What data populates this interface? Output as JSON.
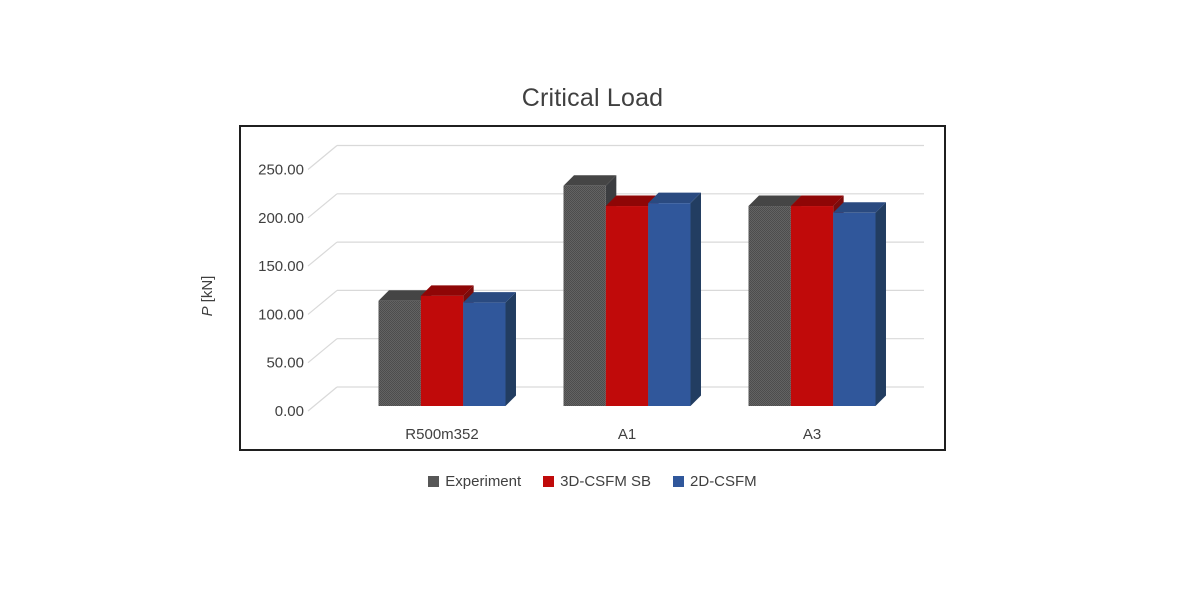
{
  "chart_data": {
    "type": "bar",
    "variant": "3d-clustered-column",
    "title": "Critical Load",
    "categories": [
      "R500m352",
      "A1",
      "A3"
    ],
    "series": [
      {
        "name": "Experiment",
        "values": [
          109,
          228,
          207
        ],
        "color_front": "#575757",
        "color_top": "#454545",
        "color_side": "#3B3D40",
        "textured": true
      },
      {
        "name": "3D-CSFM SB",
        "values": [
          114,
          207,
          207
        ],
        "color_front": "#C00A0A",
        "color_top": "#8F0606",
        "color_side": "#7A0C0C",
        "textured": false
      },
      {
        "name": "2D-CSFM",
        "values": [
          107,
          210,
          200
        ],
        "color_front": "#30579B",
        "color_top": "#2A4A80",
        "color_side": "#223D61",
        "textured": false
      }
    ],
    "ylabel": "P [kN]",
    "ylabel_symbol": "P",
    "ylabel_unit": "[kN]",
    "ylim": [
      0,
      250
    ],
    "ytick_step": 50,
    "ytick_decimals": 2,
    "grid": true,
    "legend_position": "bottom",
    "text_color": "#404040",
    "gridline_color": "#D9D9D9",
    "plot_border_color": "#1F1F1F",
    "background": "#FFFFFF"
  }
}
